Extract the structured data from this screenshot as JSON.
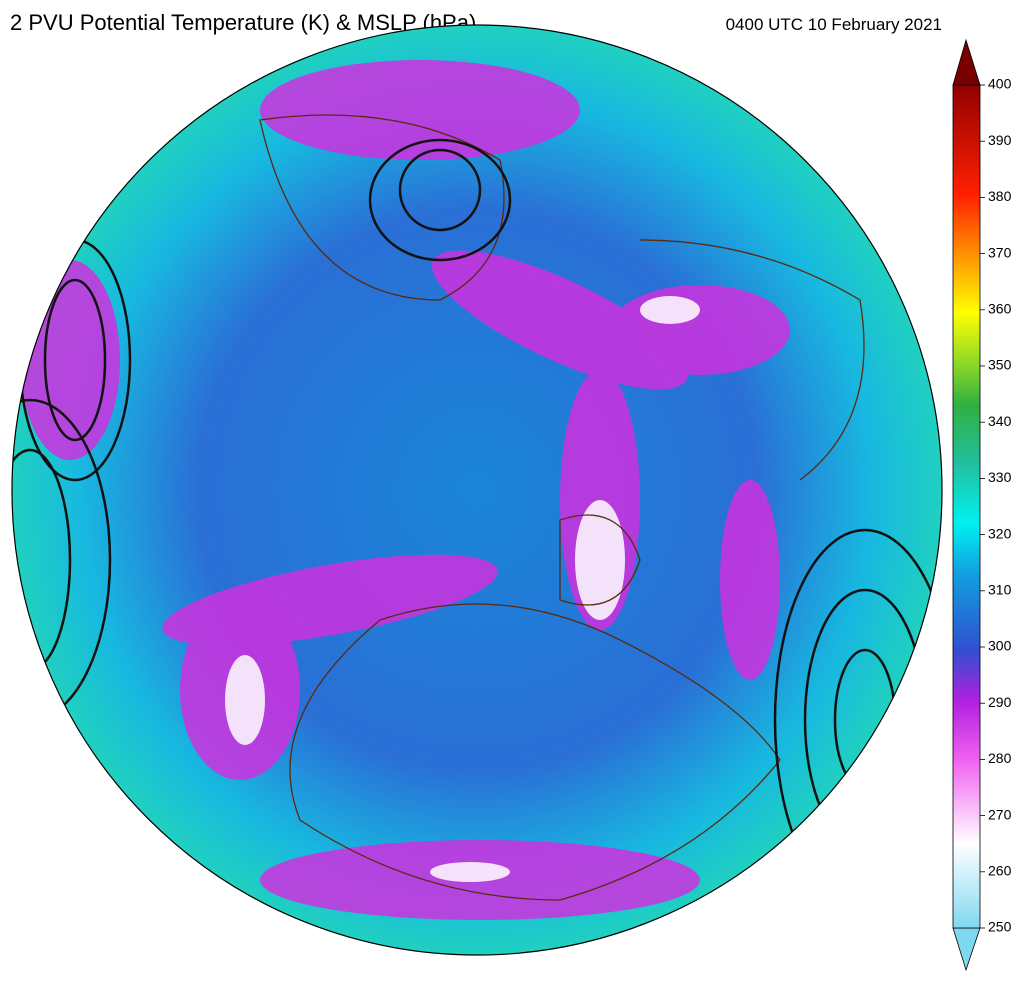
{
  "title": "2 PVU Potential Temperature (K) & MSLP (hPa)",
  "timestamp": "0400 UTC 10 February 2021",
  "colorbar": {
    "lim": [
      250,
      400
    ],
    "ticks": [
      250,
      260,
      270,
      280,
      290,
      300,
      310,
      320,
      330,
      340,
      350,
      360,
      370,
      380,
      390,
      400
    ]
  }
}
